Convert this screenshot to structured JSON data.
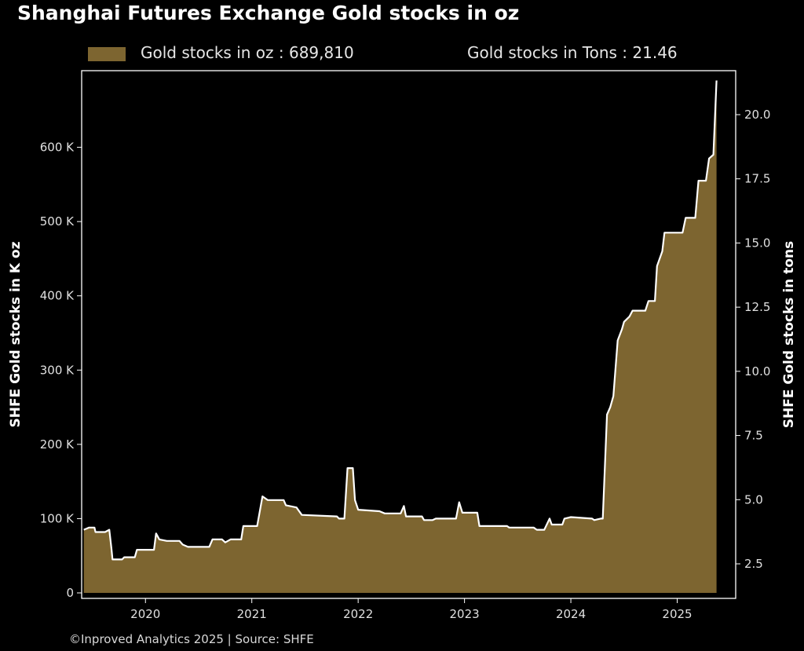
{
  "title": "Shanghai Futures Exchange Gold stocks in oz",
  "footer": "©Inproved Analytics 2025 | Source: SHFE",
  "colors": {
    "fill": "#7d6530",
    "line": "#ffffff",
    "background": "#000000"
  },
  "legend": {
    "oz_label": "Gold stocks in oz : 689,810",
    "tons_label": "Gold stocks in Tons : 21.46"
  },
  "chart_data": {
    "type": "area",
    "xlabel": "",
    "ylabel_left": "SHFE Gold stocks in K oz",
    "ylabel_right": "SHFE Gold stocks in tons",
    "ylim_left": [
      0,
      700
    ],
    "ylim_right": [
      1.4,
      21.8
    ],
    "xlim": [
      2019.4,
      2025.55
    ],
    "x_ticks": [
      2020,
      2021,
      2022,
      2023,
      2024,
      2025
    ],
    "x_tick_labels": [
      "2020",
      "2021",
      "2022",
      "2023",
      "2024",
      "2025"
    ],
    "y_left_ticks": [
      0,
      100,
      200,
      300,
      400,
      500,
      600
    ],
    "y_left_tick_labels": [
      "0",
      "100 K",
      "200 K",
      "300 K",
      "400 K",
      "500 K",
      "600 K"
    ],
    "y_right_ticks": [
      2.5,
      5.0,
      7.5,
      10.0,
      12.5,
      15.0,
      17.5,
      20.0
    ],
    "y_right_tick_labels": [
      "2.5",
      "5.0",
      "7.5",
      "10.0",
      "12.5",
      "15.0",
      "17.5",
      "20.0"
    ],
    "grid": false,
    "legend_position": "top",
    "series": [
      {
        "name": "Gold stocks in oz",
        "unit": "K oz",
        "points": [
          [
            2019.42,
            85
          ],
          [
            2019.47,
            88
          ],
          [
            2019.52,
            88
          ],
          [
            2019.53,
            82
          ],
          [
            2019.62,
            82
          ],
          [
            2019.66,
            85
          ],
          [
            2019.68,
            60
          ],
          [
            2019.69,
            45
          ],
          [
            2019.78,
            45
          ],
          [
            2019.8,
            48
          ],
          [
            2019.9,
            48
          ],
          [
            2019.92,
            58
          ],
          [
            2020.08,
            58
          ],
          [
            2020.1,
            80
          ],
          [
            2020.13,
            72
          ],
          [
            2020.2,
            70
          ],
          [
            2020.32,
            70
          ],
          [
            2020.35,
            65
          ],
          [
            2020.4,
            62
          ],
          [
            2020.6,
            62
          ],
          [
            2020.63,
            72
          ],
          [
            2020.72,
            72
          ],
          [
            2020.75,
            68
          ],
          [
            2020.8,
            72
          ],
          [
            2020.9,
            72
          ],
          [
            2020.92,
            90
          ],
          [
            2021.05,
            90
          ],
          [
            2021.1,
            130
          ],
          [
            2021.15,
            125
          ],
          [
            2021.3,
            125
          ],
          [
            2021.32,
            118
          ],
          [
            2021.42,
            115
          ],
          [
            2021.47,
            105
          ],
          [
            2021.8,
            103
          ],
          [
            2021.82,
            100
          ],
          [
            2021.87,
            100
          ],
          [
            2021.9,
            168
          ],
          [
            2021.95,
            168
          ],
          [
            2021.97,
            125
          ],
          [
            2022.0,
            112
          ],
          [
            2022.2,
            110
          ],
          [
            2022.25,
            107
          ],
          [
            2022.4,
            107
          ],
          [
            2022.43,
            117
          ],
          [
            2022.45,
            103
          ],
          [
            2022.6,
            103
          ],
          [
            2022.62,
            98
          ],
          [
            2022.7,
            98
          ],
          [
            2022.73,
            100
          ],
          [
            2022.92,
            100
          ],
          [
            2022.95,
            122
          ],
          [
            2022.98,
            108
          ],
          [
            2023.12,
            108
          ],
          [
            2023.14,
            90
          ],
          [
            2023.4,
            90
          ],
          [
            2023.42,
            88
          ],
          [
            2023.65,
            88
          ],
          [
            2023.68,
            85
          ],
          [
            2023.75,
            85
          ],
          [
            2023.8,
            100
          ],
          [
            2023.82,
            92
          ],
          [
            2023.92,
            92
          ],
          [
            2023.94,
            100
          ],
          [
            2024.0,
            102
          ],
          [
            2024.2,
            100
          ],
          [
            2024.22,
            98
          ],
          [
            2024.28,
            100
          ],
          [
            2024.3,
            100
          ],
          [
            2024.34,
            240
          ],
          [
            2024.37,
            250
          ],
          [
            2024.4,
            265
          ],
          [
            2024.44,
            340
          ],
          [
            2024.48,
            355
          ],
          [
            2024.5,
            365
          ],
          [
            2024.55,
            372
          ],
          [
            2024.58,
            380
          ],
          [
            2024.7,
            380
          ],
          [
            2024.73,
            393
          ],
          [
            2024.79,
            393
          ],
          [
            2024.81,
            440
          ],
          [
            2024.86,
            460
          ],
          [
            2024.88,
            485
          ],
          [
            2025.05,
            485
          ],
          [
            2025.08,
            505
          ],
          [
            2025.17,
            505
          ],
          [
            2025.2,
            555
          ],
          [
            2025.27,
            555
          ],
          [
            2025.3,
            585
          ],
          [
            2025.34,
            590
          ],
          [
            2025.37,
            690
          ]
        ]
      }
    ]
  }
}
